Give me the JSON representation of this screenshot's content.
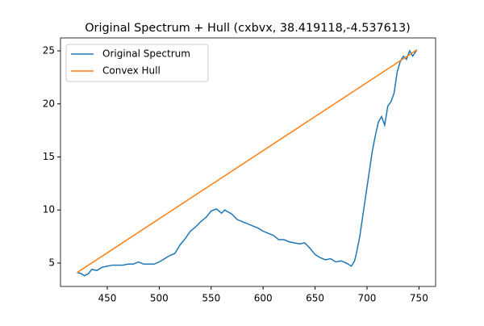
{
  "chart_data": {
    "type": "line",
    "title": "Original Spectrum + Hull (cxbvx, 38.419118,-4.537613)",
    "series": [
      {
        "name": "Original Spectrum",
        "color": "#1f77b4",
        "x": [
          421,
          425,
          428,
          432,
          435,
          440,
          445,
          450,
          455,
          460,
          465,
          470,
          475,
          480,
          485,
          490,
          495,
          500,
          505,
          510,
          515,
          520,
          525,
          530,
          535,
          540,
          545,
          550,
          555,
          560,
          563,
          570,
          575,
          580,
          585,
          590,
          595,
          600,
          605,
          610,
          615,
          620,
          625,
          630,
          635,
          640,
          645,
          650,
          655,
          660,
          665,
          670,
          675,
          680,
          685,
          688,
          690,
          693,
          696,
          699,
          702,
          705,
          708,
          711,
          714,
          717,
          720,
          723,
          726,
          729,
          732,
          735,
          738,
          741,
          744,
          748
        ],
        "values": [
          4.1,
          4.0,
          3.8,
          4.0,
          4.4,
          4.3,
          4.6,
          4.7,
          4.8,
          4.8,
          4.8,
          4.9,
          4.9,
          5.1,
          4.9,
          4.9,
          4.9,
          5.1,
          5.4,
          5.7,
          5.9,
          6.7,
          7.3,
          8.0,
          8.4,
          8.9,
          9.3,
          9.9,
          10.1,
          9.7,
          10.0,
          9.6,
          9.1,
          8.9,
          8.7,
          8.5,
          8.3,
          8.0,
          7.8,
          7.6,
          7.2,
          7.2,
          7.0,
          6.9,
          6.8,
          6.9,
          6.4,
          5.8,
          5.5,
          5.3,
          5.4,
          5.1,
          5.2,
          5.0,
          4.7,
          5.2,
          6.0,
          7.5,
          9.5,
          11.5,
          13.5,
          15.5,
          17.0,
          18.3,
          18.8,
          18.0,
          19.8,
          20.2,
          21.0,
          23.0,
          24.0,
          24.5,
          24.2,
          25.0,
          24.5,
          25.1
        ]
      },
      {
        "name": "Convex Hull",
        "color": "#ff7f0e",
        "x": [
          421,
          748
        ],
        "values": [
          4.1,
          25.1
        ]
      }
    ],
    "xlim": [
      405,
      766
    ],
    "ylim": [
      2.79,
      26.22
    ],
    "xticks": [
      450,
      500,
      550,
      600,
      650,
      700,
      750
    ],
    "yticks": [
      5,
      10,
      15,
      20,
      25
    ],
    "legend": "upper left"
  }
}
